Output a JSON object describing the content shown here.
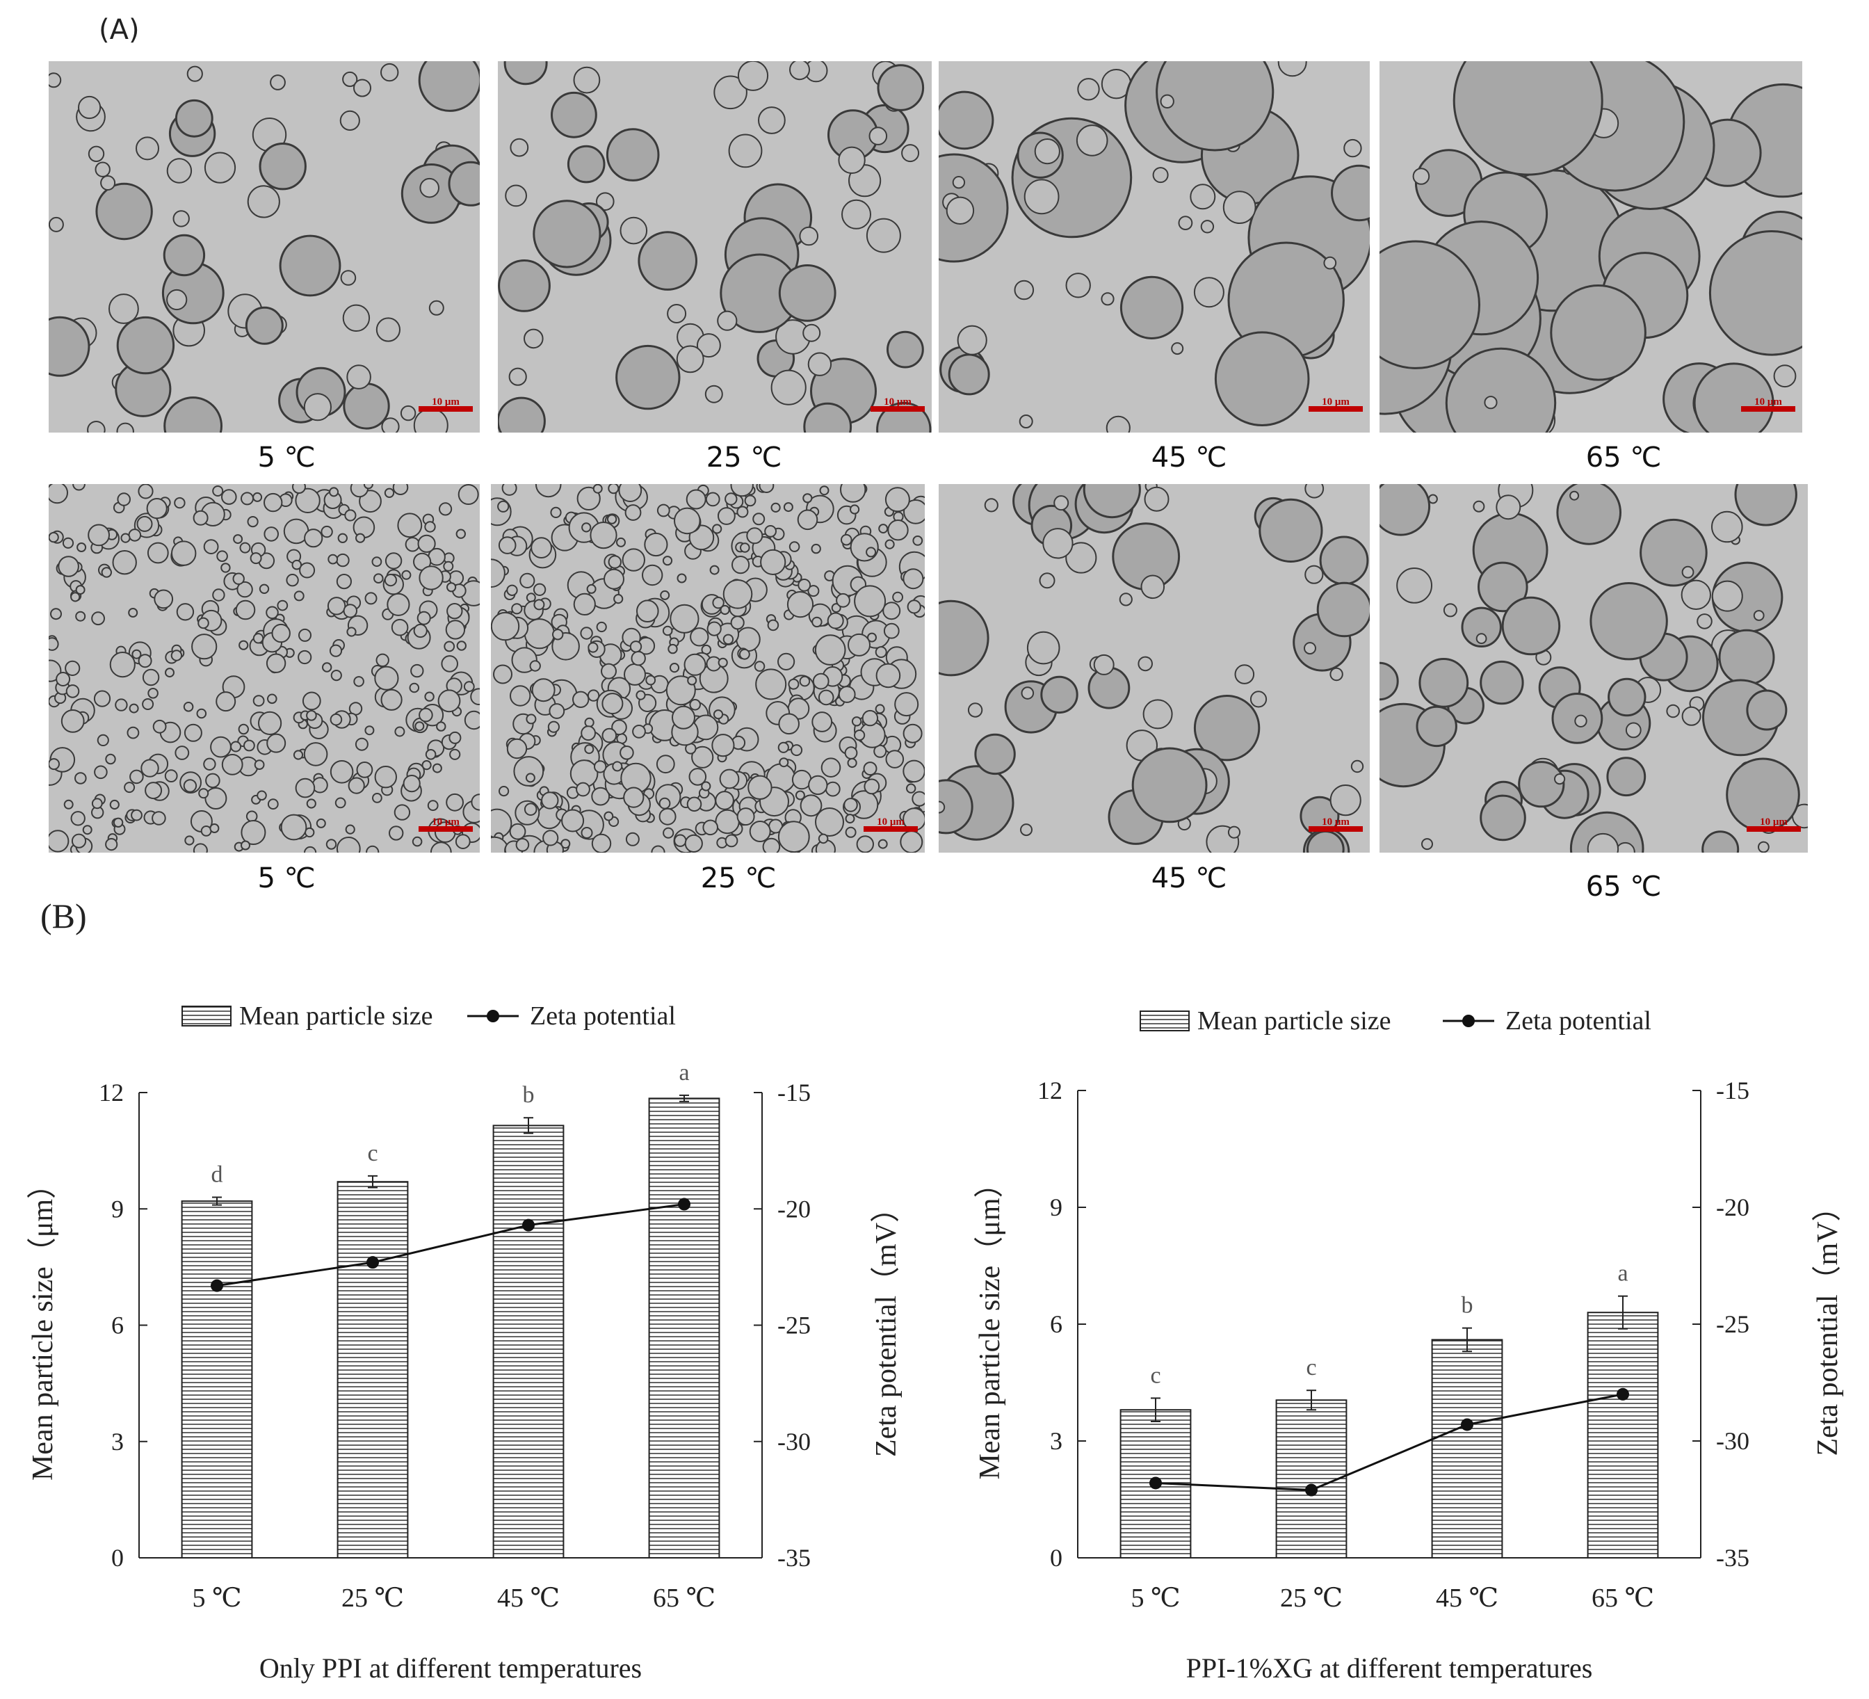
{
  "panels": {
    "a_label": "(A)",
    "b_label": "(B)"
  },
  "micrographs": {
    "scale_bar_label": "10 μm",
    "rows": [
      {
        "items": [
          {
            "temp": "5 ℃"
          },
          {
            "temp": "25 ℃"
          },
          {
            "temp": "45 ℃"
          },
          {
            "temp": "65 ℃"
          }
        ]
      },
      {
        "items": [
          {
            "temp": "5 ℃"
          },
          {
            "temp": "25 ℃"
          },
          {
            "temp": "45 ℃"
          },
          {
            "temp": "65 ℃"
          }
        ]
      }
    ]
  },
  "chart_data": [
    {
      "type": "bar",
      "title": "",
      "xlabel": "Only PPI at different temperatures",
      "ylabel": "Mean particle size（μm）",
      "y2label": "Zeta potential（mV）",
      "categories": [
        "5 ℃",
        "25 ℃",
        "45 ℃",
        "65 ℃"
      ],
      "ylim": [
        0,
        12
      ],
      "yticks": [
        0,
        3,
        6,
        9,
        12
      ],
      "y2lim": [
        -35,
        -15
      ],
      "y2ticks": [
        -15,
        -20,
        -25,
        -30,
        -35
      ],
      "legend_position": "top",
      "series": [
        {
          "name": "Mean particle  size",
          "type": "bar",
          "values": [
            9.2,
            9.7,
            11.15,
            11.85
          ],
          "errors": [
            0.1,
            0.15,
            0.2,
            0.08
          ],
          "letters": [
            "d",
            "c",
            "b",
            "a"
          ]
        },
        {
          "name": "Zeta potential",
          "type": "line",
          "axis": "right",
          "values": [
            -23.3,
            -22.3,
            -20.7,
            -19.8
          ]
        }
      ]
    },
    {
      "type": "bar",
      "title": "",
      "xlabel": "PPI-1%XG at different temperatures",
      "ylabel": "Mean particle size（μm）",
      "y2label": "Zeta potential（mV）",
      "categories": [
        "5 ℃",
        "25 ℃",
        "45 ℃",
        "65 ℃"
      ],
      "ylim": [
        0,
        12
      ],
      "yticks": [
        0,
        3,
        6,
        9,
        12
      ],
      "y2lim": [
        -35,
        -15
      ],
      "y2ticks": [
        -15,
        -20,
        -25,
        -30,
        -35
      ],
      "legend_position": "top",
      "series": [
        {
          "name": "Mean particle size",
          "type": "bar",
          "values": [
            3.8,
            4.05,
            5.6,
            6.3
          ],
          "errors": [
            0.3,
            0.25,
            0.3,
            0.42
          ],
          "letters": [
            "c",
            "c",
            "b",
            "a"
          ]
        },
        {
          "name": "Zeta potential",
          "type": "line",
          "axis": "right",
          "values": [
            -31.8,
            -32.1,
            -29.3,
            -28.0
          ]
        }
      ]
    }
  ]
}
